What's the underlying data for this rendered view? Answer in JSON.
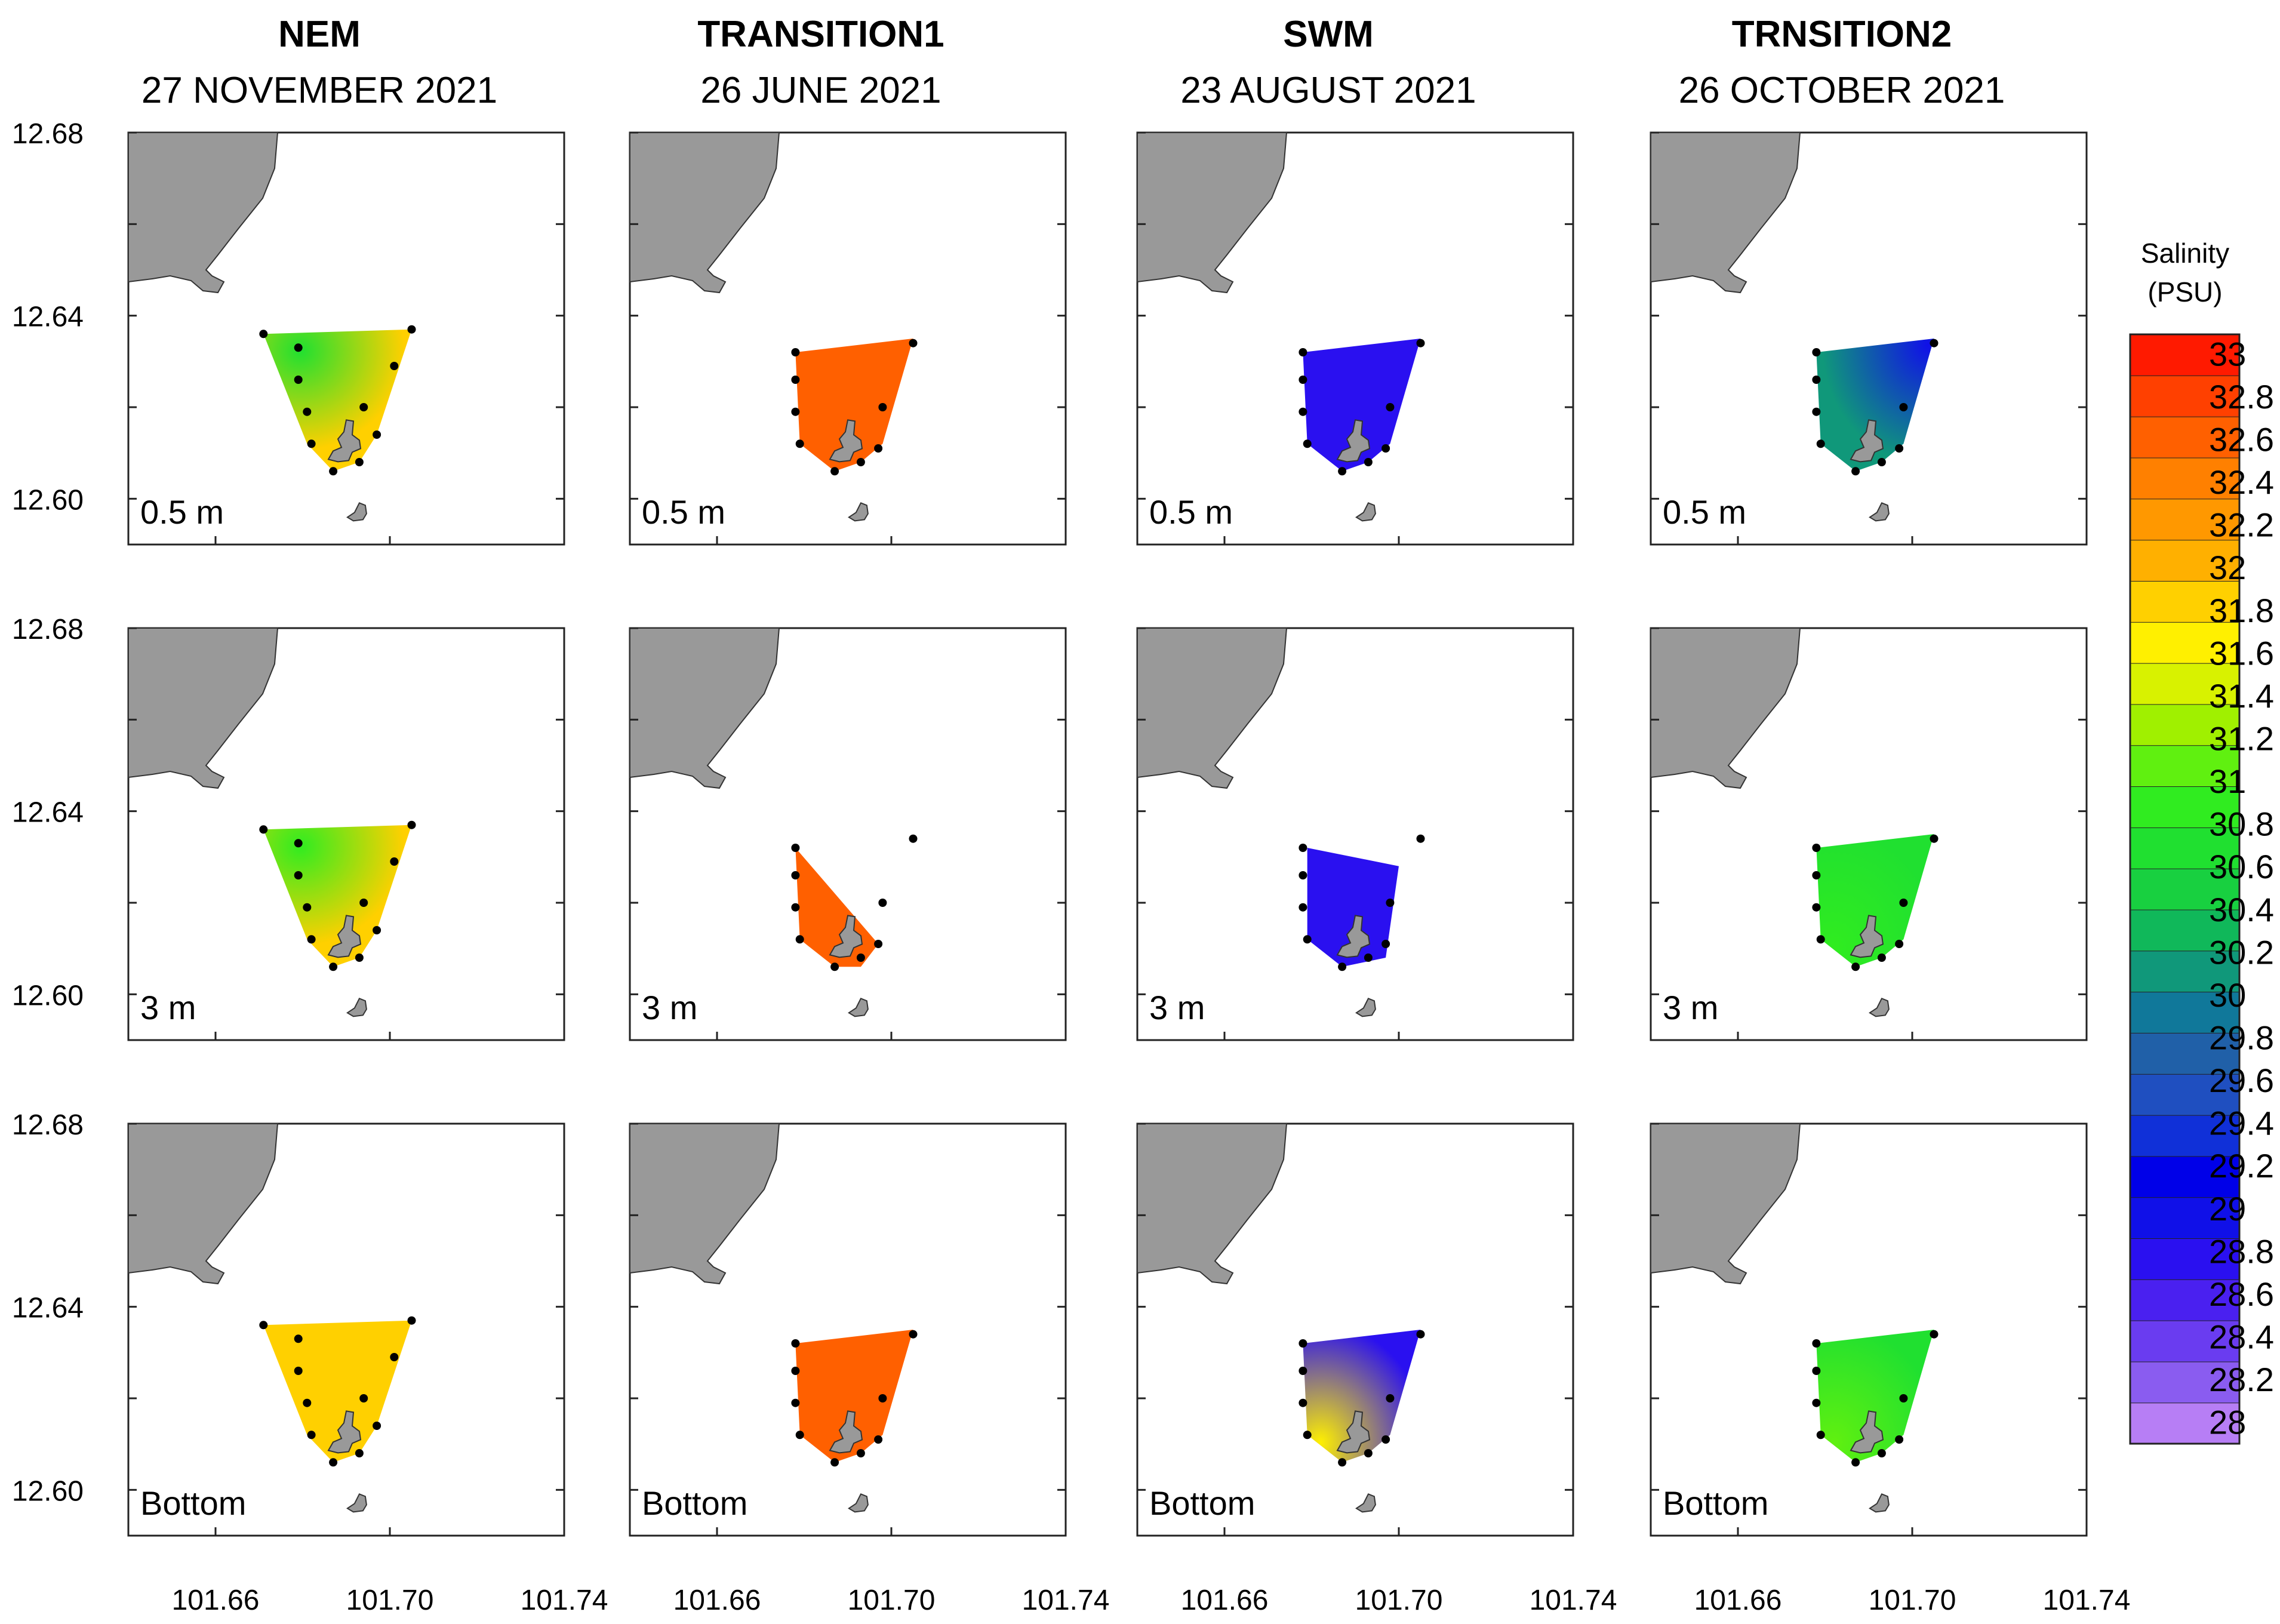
{
  "chart_data": {
    "type": "heatmap",
    "title": "",
    "xlabel": "",
    "ylabel": "",
    "xlim": [
      101.64,
      101.74
    ],
    "ylim": [
      12.59,
      12.68
    ],
    "x_ticks": [
      "101.66",
      "101.70",
      "101.74"
    ],
    "y_ticks": [
      "12.68",
      "12.64",
      "12.60"
    ],
    "seasons": [
      {
        "name": "NEM",
        "date": "27 NOVEMBER 2021"
      },
      {
        "name": "TRANSITION1",
        "date": "26 JUNE 2021"
      },
      {
        "name": "SWM",
        "date": "23 AUGUST 2021"
      },
      {
        "name": "TRNSITION2",
        "date": "26 OCTOBER 2021"
      }
    ],
    "depths": [
      "0.5 m",
      "3 m",
      "Bottom"
    ],
    "colorbar": {
      "title_line1": "Salinity",
      "title_line2": "(PSU)",
      "min": 28,
      "max": 33,
      "ticks": [
        "33",
        "32.8",
        "32.6",
        "32.4",
        "32.2",
        "32",
        "31.8",
        "31.6",
        "31.4",
        "31.2",
        "31",
        "30.8",
        "30.6",
        "30.4",
        "30.2",
        "30",
        "29.8",
        "29.6",
        "29.4",
        "29.2",
        "29",
        "28.8",
        "28.6",
        "28.4",
        "28.2",
        "28"
      ],
      "colors": [
        "#b77ef5",
        "#8a5cf0",
        "#6a3cf0",
        "#4a20f0",
        "#2a10f0",
        "#1010e8",
        "#0000e8",
        "#1030d8",
        "#1f4fc0",
        "#2060a8",
        "#10789a",
        "#10987a",
        "#10b85a",
        "#18d040",
        "#20e030",
        "#30ec20",
        "#60f010",
        "#a0f000",
        "#d8f200",
        "#fff000",
        "#ffd000",
        "#ffb000",
        "#ff9800",
        "#ff8000",
        "#ff6000",
        "#ff4000",
        "#ff1a00"
      ]
    },
    "stations": {
      "polygon_full": [
        [
          101.671,
          12.636
        ],
        [
          101.705,
          12.637
        ],
        [
          101.697,
          12.614
        ],
        [
          101.693,
          12.608
        ],
        [
          101.687,
          12.606
        ],
        [
          101.681,
          12.612
        ]
      ],
      "points_nem": [
        [
          101.671,
          12.636
        ],
        [
          101.679,
          12.633
        ],
        [
          101.679,
          12.626
        ],
        [
          101.681,
          12.619
        ],
        [
          101.682,
          12.612
        ],
        [
          101.687,
          12.606
        ],
        [
          101.693,
          12.608
        ],
        [
          101.697,
          12.614
        ],
        [
          101.694,
          12.62
        ],
        [
          101.701,
          12.629
        ],
        [
          101.705,
          12.637
        ]
      ],
      "points_west": [
        [
          101.678,
          12.632
        ],
        [
          101.678,
          12.626
        ],
        [
          101.678,
          12.619
        ],
        [
          101.679,
          12.612
        ],
        [
          101.687,
          12.606
        ],
        [
          101.693,
          12.608
        ],
        [
          101.697,
          12.611
        ],
        [
          101.698,
          12.62
        ],
        [
          101.705,
          12.634
        ]
      ]
    },
    "panels": [
      {
        "season": "NEM",
        "depth": "0.5 m",
        "base_value": 31.8,
        "gradient_value": 30.7,
        "gradient": "center"
      },
      {
        "season": "TRANSITION1",
        "depth": "0.5 m",
        "base_value": 32.6,
        "gradient_value": 32.5,
        "gradient": "none"
      },
      {
        "season": "SWM",
        "depth": "0.5 m",
        "base_value": 28.9,
        "gradient_value": 28.8,
        "gradient": "none"
      },
      {
        "season": "TRNSITION2",
        "depth": "0.5 m",
        "base_value": 30.2,
        "gradient_value": 29.1,
        "gradient": "north-east"
      },
      {
        "season": "NEM",
        "depth": "3 m",
        "base_value": 31.8,
        "gradient_value": 30.9,
        "gradient": "center"
      },
      {
        "season": "TRANSITION1",
        "depth": "3 m",
        "base_value": 32.6,
        "gradient_value": 32.5,
        "gradient": "none"
      },
      {
        "season": "SWM",
        "depth": "3 m",
        "base_value": 28.9,
        "gradient_value": 28.8,
        "gradient": "none"
      },
      {
        "season": "TRNSITION2",
        "depth": "3 m",
        "base_value": 30.6,
        "gradient_value": 30.9,
        "gradient": "south-west"
      },
      {
        "season": "NEM",
        "depth": "Bottom",
        "base_value": 31.8,
        "gradient_value": 31.7,
        "gradient": "none"
      },
      {
        "season": "TRANSITION1",
        "depth": "Bottom",
        "base_value": 32.6,
        "gradient_value": 32.5,
        "gradient": "none"
      },
      {
        "season": "SWM",
        "depth": "Bottom",
        "base_value": 28.9,
        "gradient_value": 31.6,
        "gradient": "south-west"
      },
      {
        "season": "TRNSITION2",
        "depth": "Bottom",
        "base_value": 30.6,
        "gradient_value": 31.1,
        "gradient": "south-west"
      }
    ]
  }
}
